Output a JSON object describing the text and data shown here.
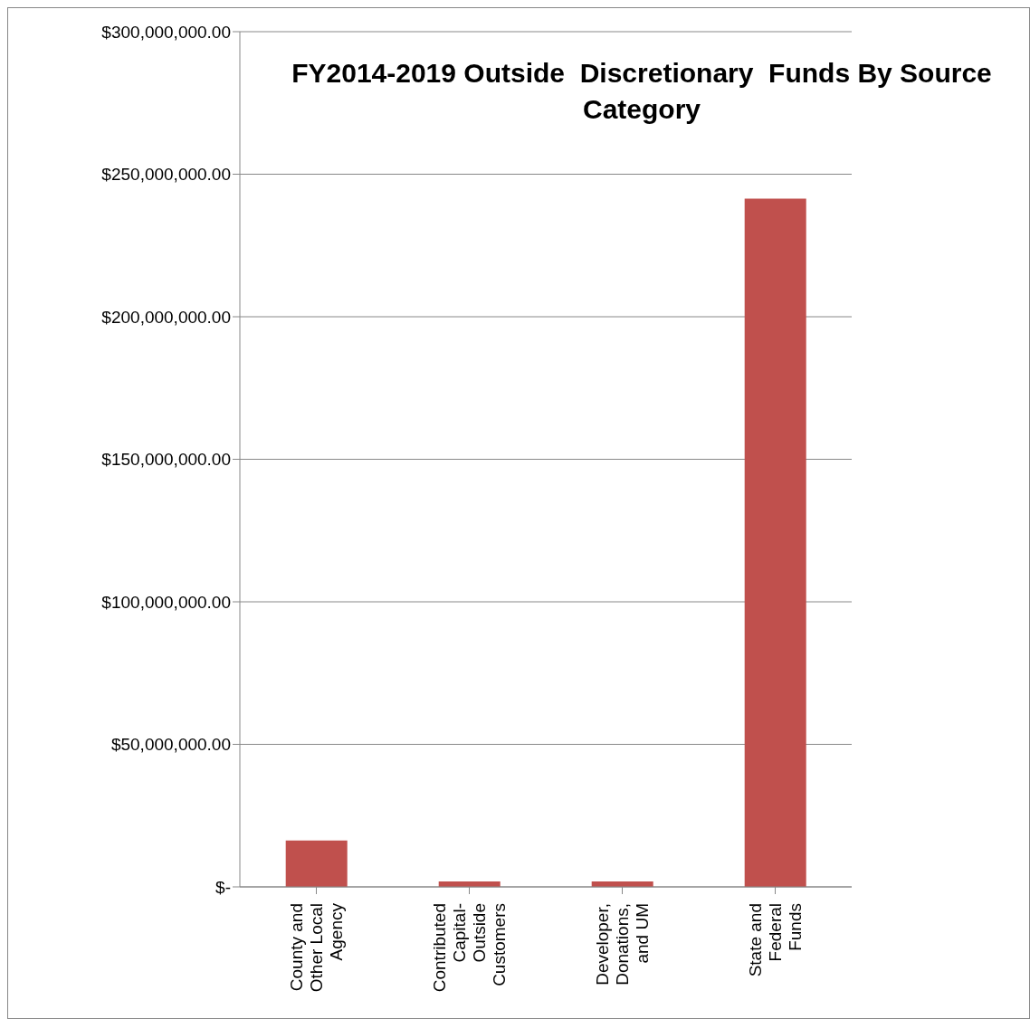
{
  "chart_data": {
    "type": "bar",
    "title": "FY2014-2019 Outside  Discretionary  Funds By Source Category",
    "categories": [
      "County and Other Local Agency",
      "Contributed Capital- Outside Customers",
      "Developer, Donations, and UM",
      "State and Federal Funds"
    ],
    "values": [
      16300000,
      1900000,
      1900000,
      241400000
    ],
    "color": "#c0504d",
    "ylim": [
      0,
      300000000
    ],
    "yticks": [
      {
        "value": 0,
        "label": "$-"
      },
      {
        "value": 50000000,
        "label": "$50,000,000.00"
      },
      {
        "value": 100000000,
        "label": "$100,000,000.00"
      },
      {
        "value": 150000000,
        "label": "$150,000,000.00"
      },
      {
        "value": 200000000,
        "label": "$200,000,000.00"
      },
      {
        "value": 250000000,
        "label": "$250,000,000.00"
      },
      {
        "value": 300000000,
        "label": "$300,000,000.00"
      }
    ],
    "grid": "y",
    "legend": false
  }
}
